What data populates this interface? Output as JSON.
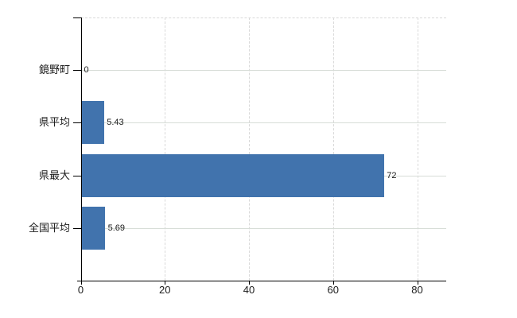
{
  "chart_data": {
    "type": "bar",
    "orientation": "horizontal",
    "title": "",
    "categories": [
      "鏡野町",
      "県平均",
      "県最大",
      "全国平均"
    ],
    "values": [
      0,
      5.43,
      72,
      5.69
    ],
    "value_labels": [
      "0",
      "5.43",
      "72",
      "5.69"
    ],
    "x_ticks": [
      0,
      20,
      40,
      60,
      80
    ],
    "x_tick_labels": [
      "0",
      "20",
      "40",
      "60",
      "80"
    ],
    "xlim": [
      0,
      86.8
    ],
    "grid": true,
    "legend": false,
    "colors": {
      "bar": "#4173ad",
      "axis": "#000000",
      "grid_horizontal": "#d7ddd7",
      "grid_vertical": "#d9d9d9",
      "text": "#1b1b1b",
      "background": "#ffffff"
    }
  }
}
